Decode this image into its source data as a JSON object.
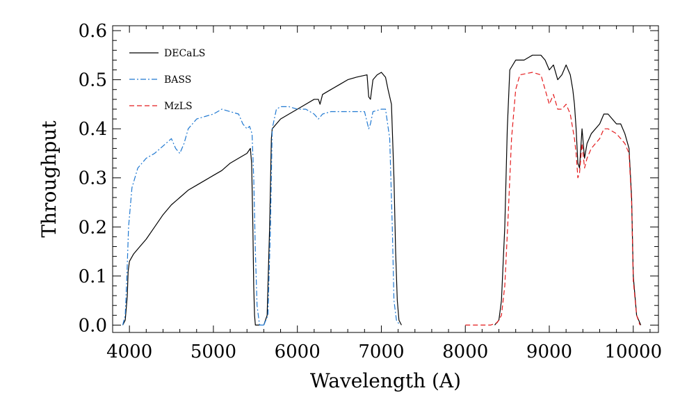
{
  "chart_data": {
    "type": "line",
    "title": "",
    "xlabel": "Wavelength (A)",
    "ylabel": "Throughput",
    "xlim": [
      3800,
      10300
    ],
    "ylim": [
      -0.015,
      0.61
    ],
    "x_ticks": [
      4000,
      5000,
      6000,
      7000,
      8000,
      9000,
      10000
    ],
    "y_ticks": [
      0.0,
      0.1,
      0.2,
      0.3,
      0.4,
      0.5,
      0.6
    ],
    "x_tick_labels": [
      "4000",
      "5000",
      "6000",
      "7000",
      "8000",
      "9000",
      "10000"
    ],
    "y_tick_labels": [
      "0.0",
      "0.1",
      "0.2",
      "0.3",
      "0.4",
      "0.5",
      "0.6"
    ],
    "grid": false,
    "legend_position": "top-left",
    "series": [
      {
        "name": "DECaLS",
        "color": "#000000",
        "dash": "solid",
        "segments": [
          [
            [
              3920,
              0.0
            ],
            [
              3950,
              0.01
            ],
            [
              3975,
              0.06
            ],
            [
              3985,
              0.11
            ],
            [
              4000,
              0.13
            ],
            [
              4050,
              0.145
            ],
            [
              4100,
              0.155
            ],
            [
              4200,
              0.175
            ],
            [
              4300,
              0.2
            ],
            [
              4400,
              0.225
            ],
            [
              4500,
              0.245
            ],
            [
              4600,
              0.26
            ],
            [
              4700,
              0.275
            ],
            [
              4800,
              0.285
            ],
            [
              4900,
              0.295
            ],
            [
              5000,
              0.305
            ],
            [
              5100,
              0.315
            ],
            [
              5200,
              0.33
            ],
            [
              5300,
              0.34
            ],
            [
              5400,
              0.35
            ],
            [
              5440,
              0.36
            ],
            [
              5455,
              0.33
            ],
            [
              5470,
              0.2
            ],
            [
              5480,
              0.08
            ],
            [
              5490,
              0.02
            ],
            [
              5500,
              0.0
            ],
            [
              5560,
              0.0
            ]
          ],
          [
            [
              5600,
              0.0
            ],
            [
              5640,
              0.02
            ],
            [
              5670,
              0.2
            ],
            [
              5690,
              0.38
            ],
            [
              5700,
              0.4
            ],
            [
              5800,
              0.42
            ],
            [
              5900,
              0.43
            ],
            [
              6000,
              0.44
            ],
            [
              6100,
              0.45
            ],
            [
              6200,
              0.46
            ],
            [
              6250,
              0.46
            ],
            [
              6270,
              0.45
            ],
            [
              6300,
              0.47
            ],
            [
              6400,
              0.48
            ],
            [
              6500,
              0.49
            ],
            [
              6600,
              0.5
            ],
            [
              6700,
              0.505
            ],
            [
              6830,
              0.51
            ],
            [
              6850,
              0.465
            ],
            [
              6870,
              0.46
            ],
            [
              6900,
              0.5
            ],
            [
              6950,
              0.51
            ],
            [
              7000,
              0.515
            ],
            [
              7050,
              0.505
            ],
            [
              7080,
              0.48
            ],
            [
              7120,
              0.45
            ],
            [
              7150,
              0.3
            ],
            [
              7170,
              0.15
            ],
            [
              7190,
              0.05
            ],
            [
              7210,
              0.01
            ],
            [
              7240,
              0.0
            ]
          ],
          [
            [
              8350,
              0.0
            ],
            [
              8400,
              0.01
            ],
            [
              8430,
              0.05
            ],
            [
              8470,
              0.2
            ],
            [
              8500,
              0.4
            ],
            [
              8530,
              0.52
            ],
            [
              8600,
              0.54
            ],
            [
              8700,
              0.54
            ],
            [
              8800,
              0.55
            ],
            [
              8900,
              0.55
            ],
            [
              8950,
              0.54
            ],
            [
              9000,
              0.52
            ],
            [
              9050,
              0.53
            ],
            [
              9100,
              0.5
            ],
            [
              9150,
              0.51
            ],
            [
              9200,
              0.53
            ],
            [
              9250,
              0.51
            ],
            [
              9280,
              0.48
            ],
            [
              9300,
              0.45
            ],
            [
              9320,
              0.4
            ],
            [
              9340,
              0.33
            ],
            [
              9360,
              0.32
            ],
            [
              9390,
              0.4
            ],
            [
              9420,
              0.34
            ],
            [
              9450,
              0.37
            ],
            [
              9500,
              0.39
            ],
            [
              9600,
              0.41
            ],
            [
              9650,
              0.43
            ],
            [
              9700,
              0.43
            ],
            [
              9750,
              0.42
            ],
            [
              9800,
              0.41
            ],
            [
              9850,
              0.41
            ],
            [
              9900,
              0.39
            ],
            [
              9950,
              0.36
            ],
            [
              9980,
              0.26
            ],
            [
              10000,
              0.1
            ],
            [
              10040,
              0.02
            ],
            [
              10090,
              0.0
            ]
          ]
        ]
      },
      {
        "name": "BASS",
        "color": "#1f78d1",
        "dash": "dashdot",
        "segments": [
          [
            [
              3920,
              0.0
            ],
            [
              3950,
              0.02
            ],
            [
              3970,
              0.1
            ],
            [
              3990,
              0.2
            ],
            [
              4030,
              0.28
            ],
            [
              4100,
              0.32
            ],
            [
              4200,
              0.34
            ],
            [
              4300,
              0.35
            ],
            [
              4400,
              0.365
            ],
            [
              4500,
              0.38
            ],
            [
              4550,
              0.36
            ],
            [
              4600,
              0.35
            ],
            [
              4650,
              0.37
            ],
            [
              4700,
              0.4
            ],
            [
              4800,
              0.42
            ],
            [
              4900,
              0.425
            ],
            [
              5000,
              0.43
            ],
            [
              5100,
              0.44
            ],
            [
              5200,
              0.435
            ],
            [
              5300,
              0.43
            ],
            [
              5350,
              0.41
            ],
            [
              5400,
              0.4
            ],
            [
              5430,
              0.405
            ],
            [
              5460,
              0.39
            ],
            [
              5480,
              0.3
            ],
            [
              5500,
              0.15
            ],
            [
              5520,
              0.04
            ],
            [
              5550,
              0.0
            ],
            [
              5600,
              0.0
            ]
          ],
          [
            [
              5600,
              0.0
            ],
            [
              5650,
              0.02
            ],
            [
              5680,
              0.2
            ],
            [
              5700,
              0.4
            ],
            [
              5750,
              0.44
            ],
            [
              5800,
              0.445
            ],
            [
              5900,
              0.445
            ],
            [
              6000,
              0.44
            ],
            [
              6100,
              0.44
            ],
            [
              6200,
              0.43
            ],
            [
              6250,
              0.42
            ],
            [
              6300,
              0.43
            ],
            [
              6400,
              0.435
            ],
            [
              6500,
              0.435
            ],
            [
              6600,
              0.435
            ],
            [
              6700,
              0.435
            ],
            [
              6800,
              0.435
            ],
            [
              6850,
              0.4
            ],
            [
              6870,
              0.41
            ],
            [
              6900,
              0.435
            ],
            [
              7000,
              0.44
            ],
            [
              7050,
              0.44
            ],
            [
              7100,
              0.38
            ],
            [
              7130,
              0.2
            ],
            [
              7150,
              0.05
            ],
            [
              7180,
              0.01
            ],
            [
              7220,
              0.0
            ]
          ]
        ]
      },
      {
        "name": "MzLS",
        "color": "#e41a1c",
        "dash": "dashed",
        "segments": [
          [
            [
              8000,
              0.0
            ],
            [
              8300,
              0.0
            ],
            [
              8380,
              0.005
            ],
            [
              8430,
              0.02
            ],
            [
              8470,
              0.08
            ],
            [
              8510,
              0.22
            ],
            [
              8550,
              0.38
            ],
            [
              8600,
              0.48
            ],
            [
              8650,
              0.51
            ],
            [
              8800,
              0.515
            ],
            [
              8900,
              0.51
            ],
            [
              8950,
              0.48
            ],
            [
              9000,
              0.45
            ],
            [
              9050,
              0.47
            ],
            [
              9100,
              0.44
            ],
            [
              9150,
              0.44
            ],
            [
              9200,
              0.45
            ],
            [
              9250,
              0.43
            ],
            [
              9280,
              0.4
            ],
            [
              9300,
              0.38
            ],
            [
              9320,
              0.35
            ],
            [
              9340,
              0.3
            ],
            [
              9360,
              0.31
            ],
            [
              9390,
              0.37
            ],
            [
              9420,
              0.32
            ],
            [
              9450,
              0.34
            ],
            [
              9500,
              0.36
            ],
            [
              9600,
              0.38
            ],
            [
              9650,
              0.4
            ],
            [
              9700,
              0.4
            ],
            [
              9800,
              0.39
            ],
            [
              9900,
              0.37
            ],
            [
              9950,
              0.35
            ],
            [
              9980,
              0.25
            ],
            [
              10000,
              0.09
            ],
            [
              10040,
              0.02
            ],
            [
              10080,
              0.0
            ]
          ]
        ]
      }
    ]
  }
}
